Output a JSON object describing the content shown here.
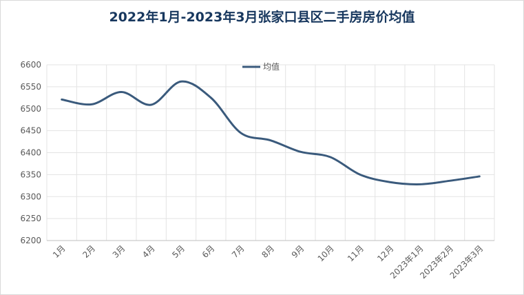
{
  "chart_data": {
    "type": "line",
    "title": "2022年1月-2023年3月张家口县区二手房房价均值",
    "xlabel": "",
    "ylabel": "",
    "categories": [
      "1月",
      "2月",
      "3月",
      "4月",
      "5月",
      "6月",
      "7月",
      "8月",
      "9月",
      "10月",
      "11月",
      "12月",
      "2023年1月",
      "2023年2月",
      "2023年3月"
    ],
    "series": [
      {
        "name": "均值",
        "values": [
          6521,
          6510,
          6538,
          6509,
          6562,
          6525,
          6445,
          6428,
          6402,
          6390,
          6350,
          6333,
          6328,
          6336,
          6346
        ]
      }
    ],
    "ylim": [
      6200,
      6600
    ],
    "yticks": [
      6200,
      6250,
      6300,
      6350,
      6400,
      6450,
      6500,
      6550,
      6600
    ],
    "grid": true,
    "legend": "top-center",
    "colors": {
      "line": "#3a5a7c",
      "title": "#17375e",
      "grid": "#e3e3e3"
    }
  }
}
